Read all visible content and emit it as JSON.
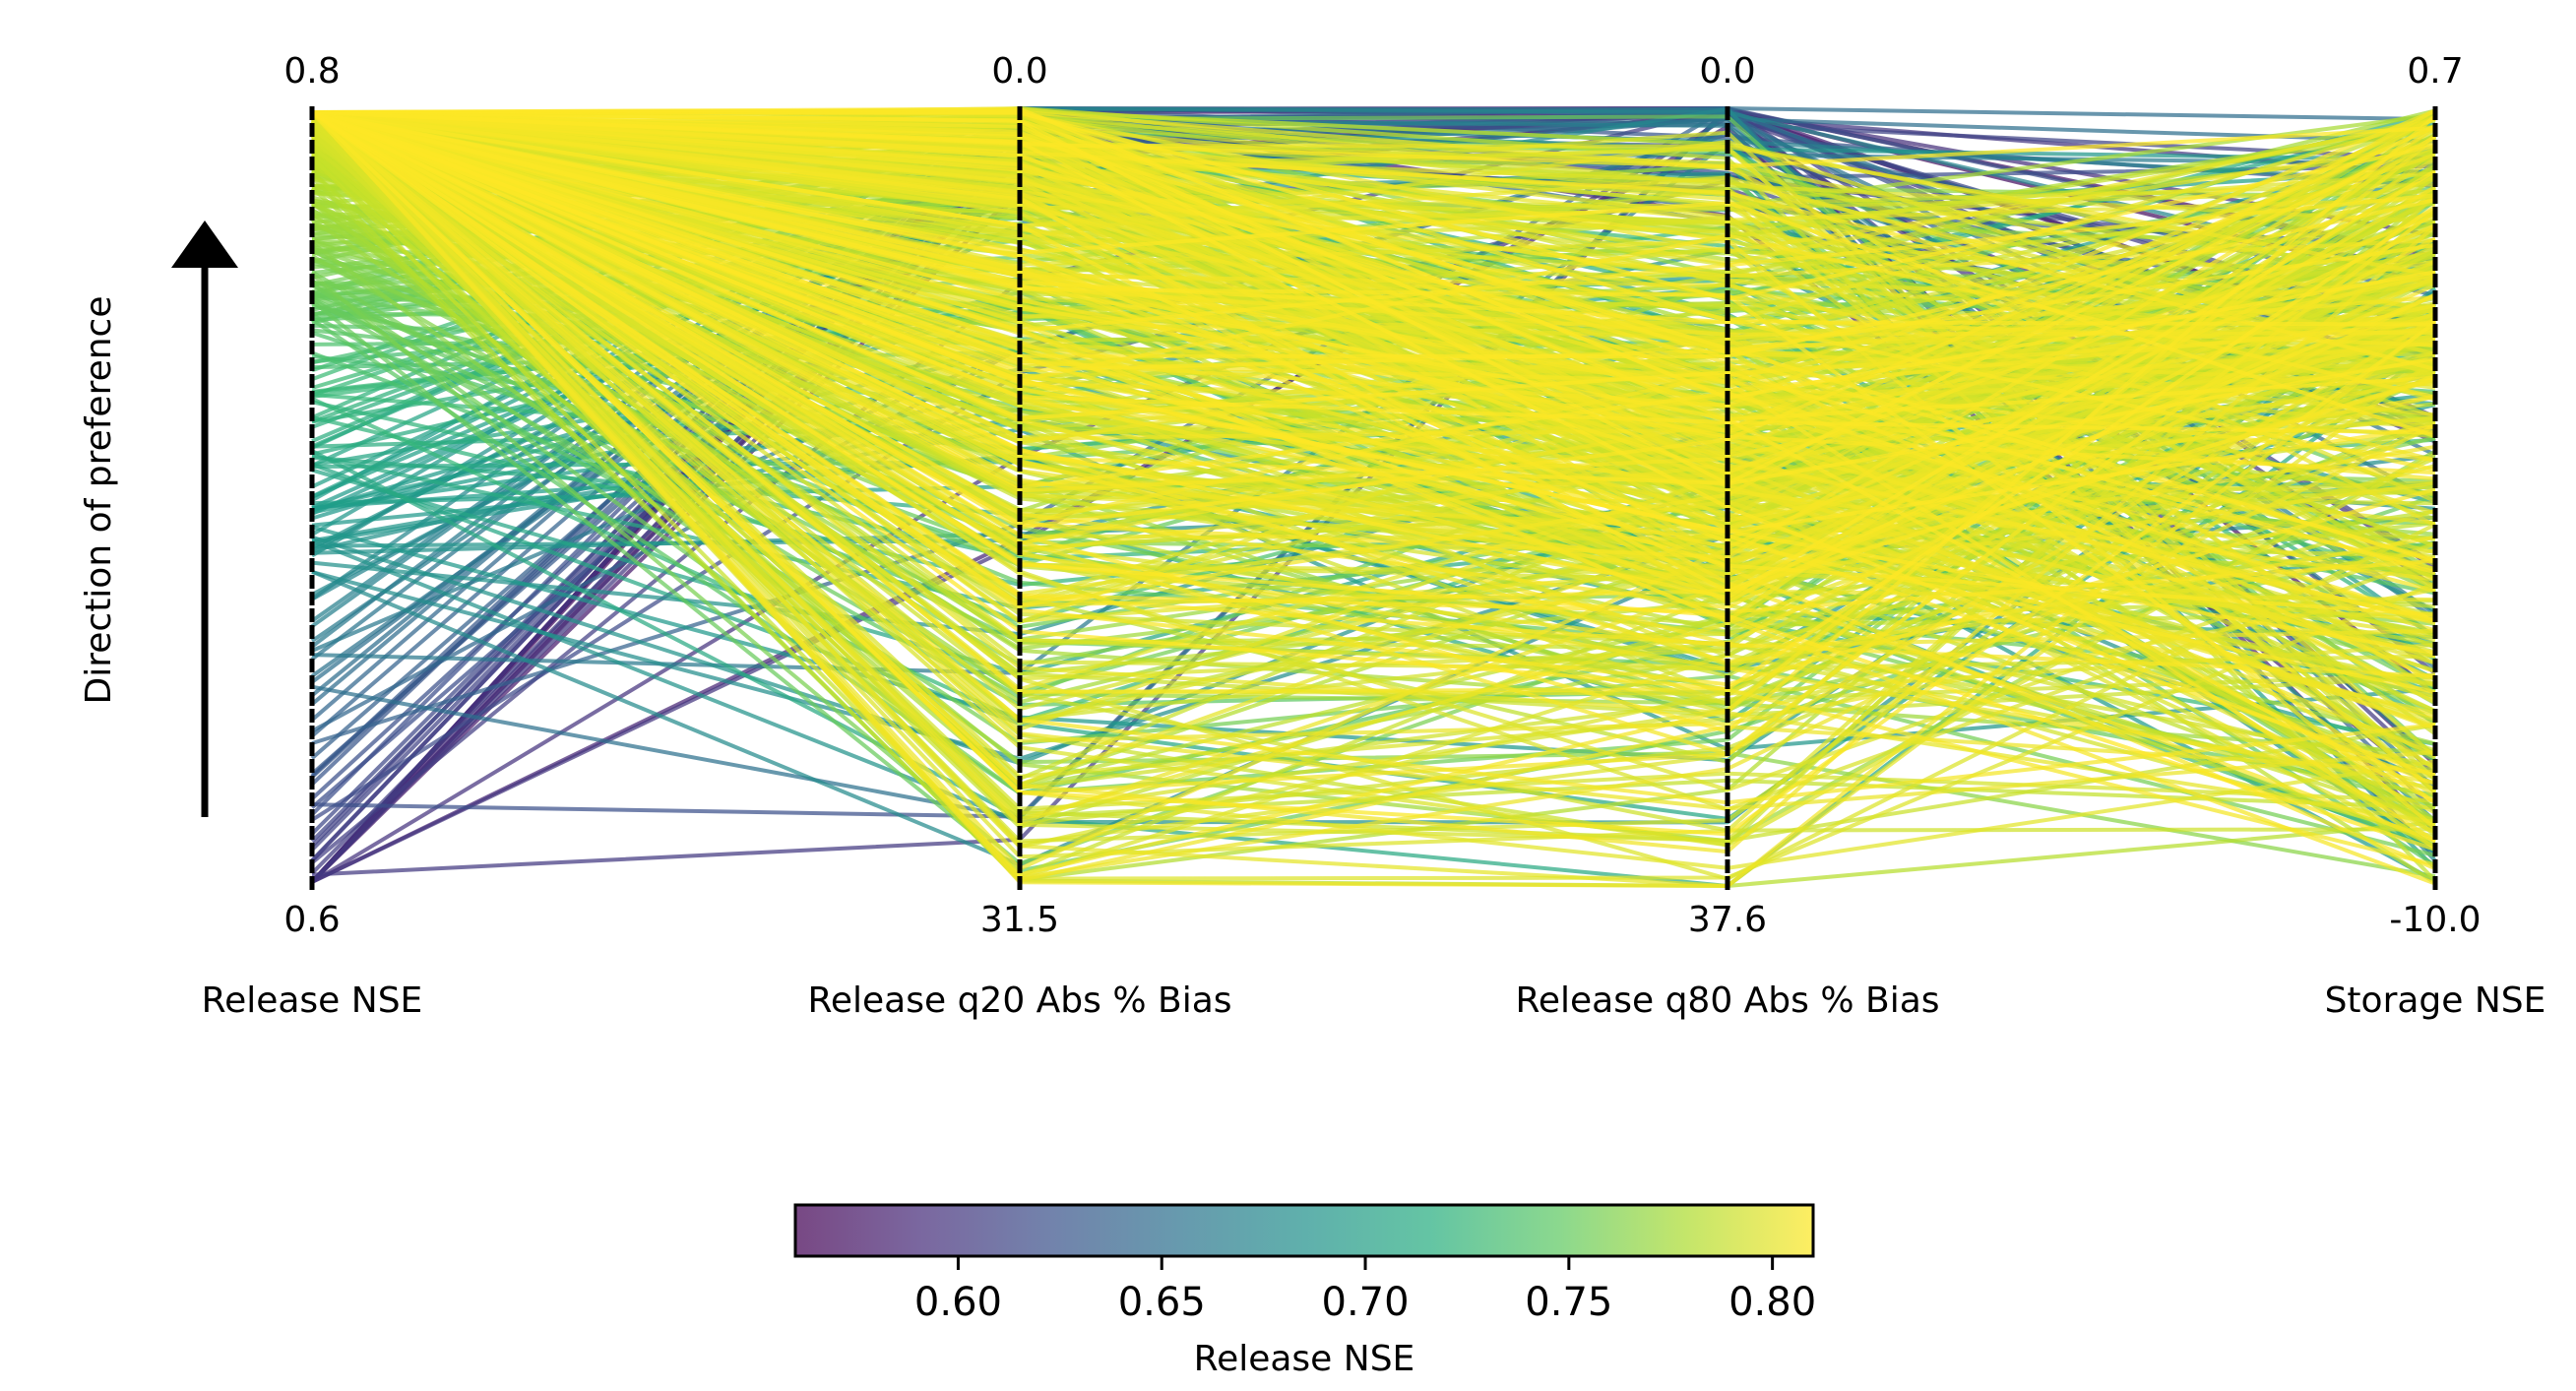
{
  "chart_data": {
    "type": "parallel_coordinates",
    "axes": [
      {
        "name": "Release NSE",
        "top": "0.8",
        "bottom": "0.6",
        "top_value": 0.8,
        "bottom_value": 0.6
      },
      {
        "name": "Release q20 Abs % Bias",
        "top": "0.0",
        "bottom": "31.5",
        "top_value": 0.0,
        "bottom_value": 31.5
      },
      {
        "name": "Release q80 Abs % Bias",
        "top": "0.0",
        "bottom": "37.6",
        "top_value": 0.0,
        "bottom_value": 37.6
      },
      {
        "name": "Storage NSE",
        "top": "0.7",
        "bottom": "-10.0",
        "top_value": 0.7,
        "bottom_value": -10.0
      }
    ],
    "preference_label": "Direction of preference",
    "colorbar": {
      "label": "Release NSE",
      "colormap": "viridis",
      "range": [
        0.56,
        0.81
      ],
      "ticks": [
        0.6,
        0.65,
        0.7,
        0.75,
        0.8
      ],
      "tick_labels": [
        "0.60",
        "0.65",
        "0.70",
        "0.75",
        "0.80"
      ]
    },
    "line_count": 600
  }
}
